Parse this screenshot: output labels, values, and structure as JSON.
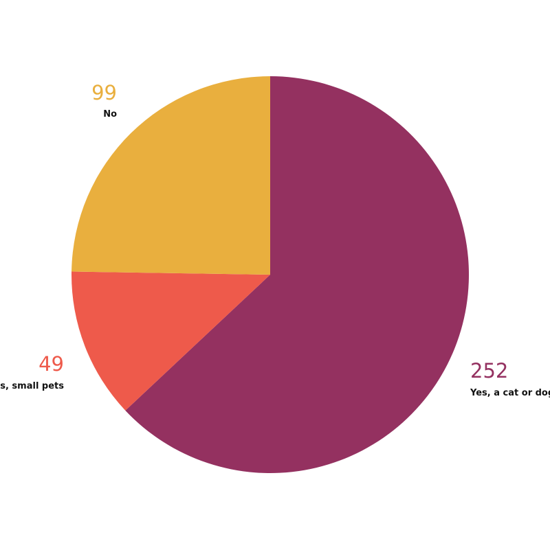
{
  "chart_data": {
    "type": "pie",
    "categories": [
      "Yes, a cat or dog",
      "Yes, small pets",
      "No"
    ],
    "values": [
      252,
      49,
      99
    ],
    "colors": [
      "#943160",
      "#EE5A4B",
      "#E9AF3E"
    ],
    "start": "12 o'clock",
    "direction": "clockwise",
    "legend": "none"
  }
}
